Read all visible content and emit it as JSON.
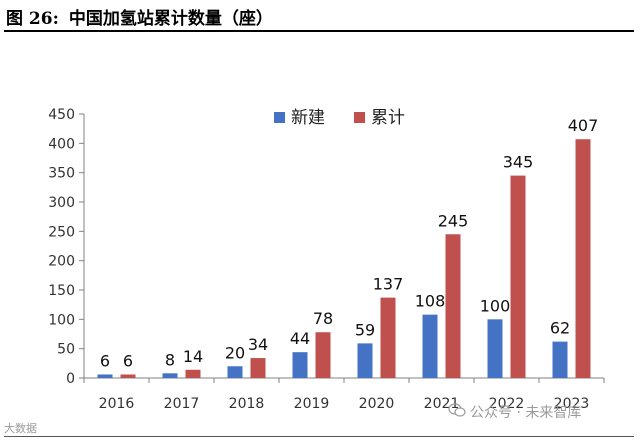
{
  "header": {
    "figure_number": "图 26:",
    "title": "中国加氢站累计数量（座）"
  },
  "watermarks": {
    "left": "大数据",
    "right": "公众号 · 未来智库"
  },
  "colors": {
    "new": "#4472C4",
    "cumulative": "#C0504D"
  },
  "chart_data": {
    "type": "bar",
    "title": "",
    "xlabel": "",
    "ylabel": "",
    "categories": [
      "2016",
      "2017",
      "2018",
      "2019",
      "2020",
      "2021",
      "2022",
      "2023"
    ],
    "ylim": [
      0,
      450
    ],
    "yticks": [
      0,
      50,
      100,
      150,
      200,
      250,
      300,
      350,
      400,
      450
    ],
    "grid": false,
    "legend_position": "top-center",
    "series": [
      {
        "name": "新建",
        "values": [
          6,
          8,
          20,
          44,
          59,
          108,
          100,
          62
        ]
      },
      {
        "name": "累计",
        "values": [
          6,
          14,
          34,
          78,
          137,
          245,
          345,
          407
        ]
      }
    ]
  }
}
